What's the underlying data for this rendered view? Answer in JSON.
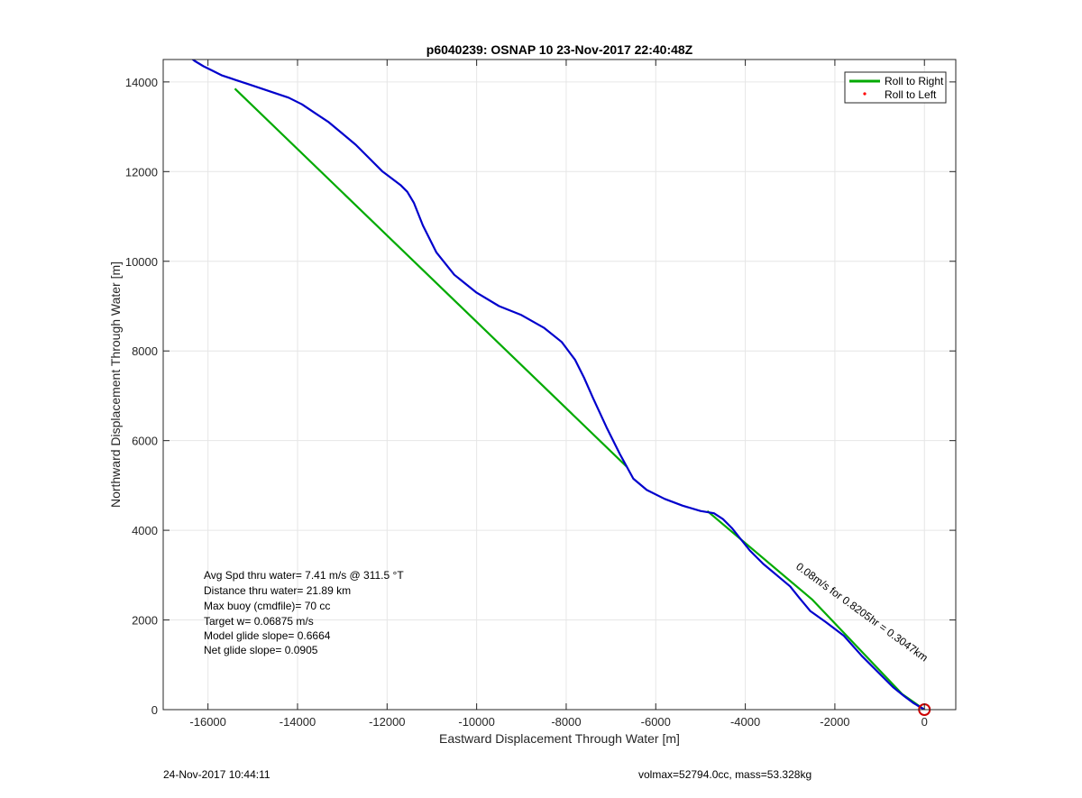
{
  "chart_data": {
    "type": "line",
    "title": "p6040239: OSNAP 10 23-Nov-2017 22:40:48Z",
    "xlabel": "Eastward Displacement Through Water [m]",
    "ylabel": "Northward Displacement Through Water [m]",
    "xlim": [
      -17000,
      700
    ],
    "ylim": [
      0,
      14500
    ],
    "xticks": [
      -16000,
      -14000,
      -12000,
      -10000,
      -8000,
      -6000,
      -4000,
      -2000,
      0
    ],
    "yticks": [
      0,
      2000,
      4000,
      6000,
      8000,
      10000,
      12000,
      14000
    ],
    "grid": true,
    "legend_position": "top-right",
    "legend": [
      {
        "label": "Roll to Right",
        "color": "#00aa00",
        "style": "line"
      },
      {
        "label": "Roll to Left",
        "color": "#ff0000",
        "style": "dot"
      }
    ],
    "series": [
      {
        "name": "Roll to Right",
        "color": "#00aa00",
        "x": [
          0,
          -500,
          -2500,
          -4850
        ],
        "y": [
          0,
          350,
          2450,
          4430
        ]
      },
      {
        "name": "Roll to Right",
        "color": "#00aa00",
        "x": [
          -6650,
          -15400
        ],
        "y": [
          5420,
          13850
        ]
      },
      {
        "name": "",
        "color": "#0000cc",
        "x": [
          0,
          -100,
          -250,
          -450,
          -700,
          -1000,
          -1400,
          -1800,
          -2200,
          -2550,
          -2800,
          -3000,
          -3300,
          -3600,
          -3900,
          -4100,
          -4300,
          -4500,
          -4700,
          -5000,
          -5400,
          -5800,
          -6200,
          -6500,
          -6800,
          -7100,
          -7400,
          -7600,
          -7800,
          -8100,
          -8500,
          -9000,
          -9500,
          -10000,
          -10500,
          -10900,
          -11200,
          -11400,
          -11550,
          -11700,
          -11900,
          -12100,
          -12400,
          -12700,
          -13000,
          -13300,
          -13600,
          -13900,
          -14200,
          -14500,
          -14800,
          -15100,
          -15400,
          -15700,
          -15900,
          -16100,
          -16300,
          -16400
        ],
        "y": [
          0,
          60,
          150,
          300,
          500,
          800,
          1200,
          1650,
          1950,
          2200,
          2500,
          2750,
          3000,
          3250,
          3550,
          3800,
          4050,
          4250,
          4380,
          4430,
          4550,
          4700,
          4900,
          5150,
          5700,
          6300,
          6950,
          7400,
          7800,
          8200,
          8520,
          8800,
          9000,
          9300,
          9700,
          10200,
          10800,
          11300,
          11550,
          11700,
          11850,
          12000,
          12300,
          12600,
          12850,
          13100,
          13300,
          13500,
          13650,
          13750,
          13850,
          13950,
          14050,
          14150,
          14250,
          14350,
          14470,
          14550
        ]
      }
    ],
    "marker": {
      "x": 0,
      "y": 0,
      "color": "#cc0000"
    },
    "rotated_annotation": "0.08m/s for 0.8205hr = 0.3047km"
  },
  "stats": [
    "Avg Spd thru water=  7.41 m/s @ 311.5 °T",
    "Distance thru water= 21.89 km",
    "Max buoy (cmdfile)= 70 cc",
    "Target w= 0.06875 m/s",
    "Model glide slope= 0.6664",
    "Net glide slope= 0.0905"
  ],
  "footer": {
    "left": "24-Nov-2017 10:44:11",
    "right": "volmax=52794.0cc, mass=53.328kg"
  }
}
